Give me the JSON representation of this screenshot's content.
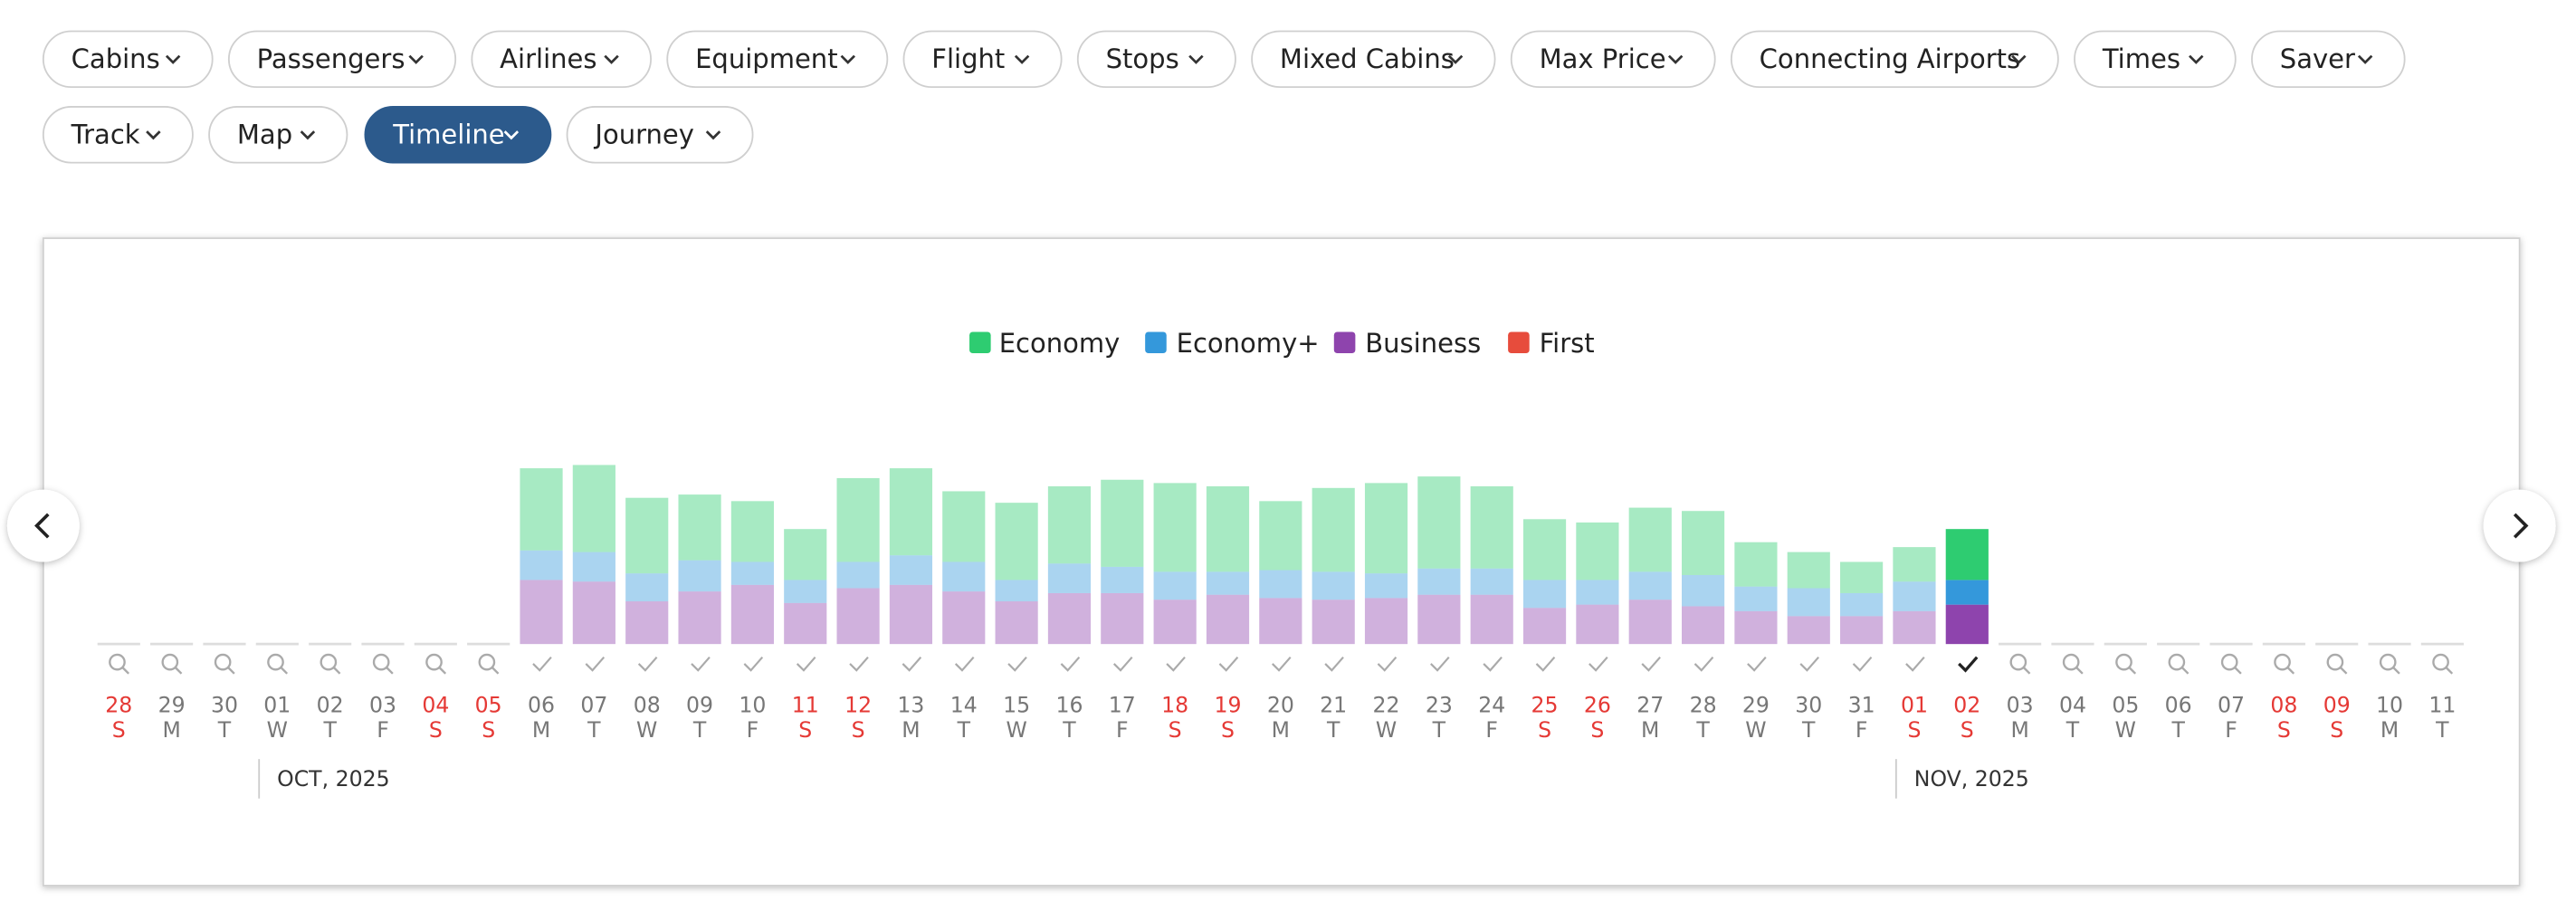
{
  "filters": [
    [
      {
        "label": "Cabins",
        "active": false
      },
      {
        "label": "Passengers",
        "active": false
      },
      {
        "label": "Airlines",
        "active": false
      },
      {
        "label": "Equipment",
        "active": false
      },
      {
        "label": "Flight",
        "active": false
      },
      {
        "label": "Stops",
        "active": false
      },
      {
        "label": "Mixed Cabins",
        "active": false
      },
      {
        "label": "Max Price",
        "active": false
      },
      {
        "label": "Connecting Airports",
        "active": false
      },
      {
        "label": "Times",
        "active": false
      },
      {
        "label": "Saver",
        "active": false
      }
    ],
    [
      {
        "label": "Track",
        "active": false
      },
      {
        "label": "Map",
        "active": false
      },
      {
        "label": "Timeline",
        "active": true
      },
      {
        "label": "Journey",
        "active": false
      }
    ]
  ],
  "chart_data": {
    "type": "stacked-bar",
    "categories": [
      "28",
      "29",
      "30",
      "01",
      "02",
      "03",
      "04",
      "05",
      "06",
      "07",
      "08",
      "09",
      "10",
      "11",
      "12",
      "13",
      "14",
      "15",
      "16",
      "17",
      "18",
      "19",
      "20",
      "21",
      "22",
      "23",
      "24",
      "25",
      "26",
      "27",
      "28",
      "29",
      "30",
      "31",
      "01",
      "02",
      "03",
      "04",
      "05",
      "06",
      "07",
      "08",
      "09",
      "10",
      "11"
    ],
    "weekdays": [
      "S",
      "M",
      "T",
      "W",
      "T",
      "F",
      "S",
      "S",
      "M",
      "T",
      "W",
      "T",
      "F",
      "S",
      "S",
      "M",
      "T",
      "W",
      "T",
      "F",
      "S",
      "S",
      "M",
      "T",
      "W",
      "T",
      "F",
      "S",
      "S",
      "M",
      "T",
      "W",
      "T",
      "F",
      "S",
      "S",
      "M",
      "T",
      "W",
      "T",
      "F",
      "S",
      "S",
      "M",
      "T"
    ],
    "red": [
      true,
      false,
      false,
      false,
      false,
      false,
      true,
      true,
      false,
      false,
      false,
      false,
      false,
      true,
      true,
      false,
      false,
      false,
      false,
      false,
      true,
      true,
      false,
      false,
      false,
      false,
      false,
      true,
      true,
      false,
      false,
      false,
      false,
      false,
      true,
      true,
      false,
      false,
      false,
      false,
      false,
      true,
      true,
      false,
      false
    ],
    "months": [
      "OCT, 2025",
      "NOV, 2025"
    ],
    "selected": 35,
    "series": [
      {
        "name": "Economy",
        "color": "#2ecc71",
        "values": [
          null,
          null,
          null,
          null,
          null,
          null,
          null,
          null,
          50,
          53,
          46,
          40,
          37,
          31,
          51,
          53,
          43,
          47,
          47,
          53,
          54,
          52,
          42,
          51,
          55,
          56,
          50,
          37,
          35,
          39,
          39,
          27,
          22,
          19,
          21,
          31,
          null,
          null,
          null,
          null,
          null,
          null,
          null,
          null,
          null
        ]
      },
      {
        "name": "Economy+",
        "color": "#3498db",
        "values": [
          null,
          null,
          null,
          null,
          null,
          null,
          null,
          null,
          18,
          18,
          17,
          19,
          14,
          14,
          16,
          18,
          18,
          13,
          18,
          16,
          17,
          14,
          17,
          17,
          15,
          16,
          16,
          17,
          15,
          17,
          19,
          15,
          17,
          14,
          18,
          15,
          null,
          null,
          null,
          null,
          null,
          null,
          null,
          null,
          null
        ]
      },
      {
        "name": "Business",
        "color": "#8e44ad",
        "values": [
          null,
          null,
          null,
          null,
          null,
          null,
          null,
          null,
          39,
          38,
          26,
          32,
          36,
          25,
          34,
          36,
          32,
          26,
          31,
          31,
          27,
          30,
          28,
          27,
          28,
          30,
          30,
          22,
          24,
          27,
          23,
          20,
          17,
          17,
          20,
          24,
          null,
          null,
          null,
          null,
          null,
          null,
          null,
          null,
          null
        ]
      },
      {
        "name": "First",
        "color": "#e74c3c",
        "values": [
          null,
          null,
          null,
          null,
          null,
          null,
          null,
          null,
          null,
          null,
          null,
          null,
          null,
          null,
          null,
          null,
          null,
          null,
          null,
          null,
          null,
          null,
          null,
          null,
          null,
          null,
          null,
          null,
          null,
          null,
          null,
          null,
          null,
          null,
          null,
          null,
          null,
          null,
          null,
          null,
          null,
          null,
          null,
          null,
          null
        ]
      }
    ]
  }
}
